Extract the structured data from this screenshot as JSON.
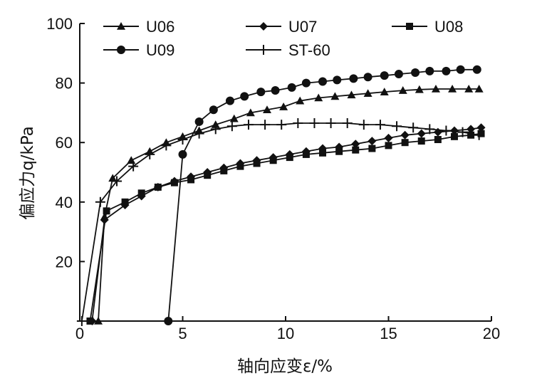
{
  "chart_data": {
    "type": "line",
    "title": "",
    "xlabel": "轴向应变ε/%",
    "ylabel": "偏应力q/kPa",
    "xlim": [
      0,
      20
    ],
    "ylim": [
      0,
      100
    ],
    "xticks": [
      0,
      5,
      10,
      15,
      20
    ],
    "yticks": [
      20,
      40,
      60,
      80,
      100
    ],
    "grid": false,
    "legend_position": "top",
    "series": [
      {
        "name": "U06",
        "marker": "triangle",
        "x": [
          0.9,
          1.2,
          1.6,
          2.5,
          3.4,
          4.2,
          5.0,
          5.8,
          6.6,
          7.5,
          8.3,
          9.1,
          9.9,
          10.7,
          11.6,
          12.4,
          13.2,
          14.0,
          14.8,
          15.7,
          16.5,
          17.3,
          18.1,
          18.9,
          19.4
        ],
        "y": [
          0,
          35,
          48,
          54,
          57,
          60,
          62,
          64,
          66,
          68,
          70,
          71,
          72,
          74,
          75,
          75.5,
          76,
          76.5,
          77,
          77.5,
          77.8,
          78,
          78,
          78,
          78
        ]
      },
      {
        "name": "U07",
        "marker": "diamond",
        "x": [
          0.6,
          1.2,
          2.2,
          3.0,
          3.8,
          4.6,
          5.4,
          6.2,
          7.0,
          7.8,
          8.6,
          9.4,
          10.2,
          11.0,
          11.8,
          12.6,
          13.4,
          14.2,
          15.0,
          15.8,
          16.6,
          17.4,
          18.2,
          19.0,
          19.5
        ],
        "y": [
          0,
          34,
          39,
          42,
          45,
          47,
          48.5,
          50,
          51.5,
          53,
          54,
          55,
          56,
          57,
          58,
          58.5,
          59.5,
          60.5,
          61.5,
          62.5,
          63,
          63.5,
          64,
          64.5,
          65
        ]
      },
      {
        "name": "U08",
        "marker": "square",
        "x": [
          0.5,
          1.3,
          2.2,
          3.0,
          3.8,
          4.6,
          5.4,
          6.2,
          7.0,
          7.8,
          8.6,
          9.4,
          10.2,
          11.0,
          11.8,
          12.6,
          13.4,
          14.2,
          15.0,
          15.8,
          16.6,
          17.4,
          18.2,
          19.0,
          19.5
        ],
        "y": [
          0,
          37,
          40,
          43,
          45,
          46.5,
          47.5,
          49,
          50.5,
          52,
          53,
          54,
          55,
          56,
          56.5,
          57,
          57.5,
          58,
          59,
          60,
          60.5,
          61,
          62,
          62.5,
          63
        ]
      },
      {
        "name": "U09",
        "marker": "circle",
        "x": [
          4.3,
          5.0,
          5.8,
          6.5,
          7.3,
          8.0,
          8.8,
          9.5,
          10.3,
          11.0,
          11.8,
          12.5,
          13.3,
          14.0,
          14.8,
          15.5,
          16.3,
          17.0,
          17.8,
          18.5,
          19.3
        ],
        "y": [
          0,
          56,
          67,
          71,
          74,
          75.5,
          77,
          77.5,
          78.5,
          80,
          80.5,
          81,
          81.5,
          82,
          82.5,
          83,
          83.5,
          84,
          84,
          84.5,
          84.5
        ]
      },
      {
        "name": "ST-60",
        "marker": "plus",
        "x": [
          0.1,
          1.0,
          1.8,
          2.6,
          3.4,
          4.2,
          5.0,
          5.8,
          6.6,
          7.4,
          8.2,
          9.0,
          9.8,
          10.6,
          11.4,
          12.2,
          13.0,
          13.8,
          14.6,
          15.4,
          16.2,
          17.0,
          17.8,
          18.6,
          19.4
        ],
        "y": [
          0,
          40,
          47,
          52,
          56,
          59,
          61,
          63,
          64.5,
          65.5,
          66,
          66,
          66,
          66.5,
          66.5,
          66.5,
          66.5,
          66,
          66,
          65.5,
          65,
          64.5,
          64,
          63.5,
          62.5
        ]
      }
    ]
  }
}
